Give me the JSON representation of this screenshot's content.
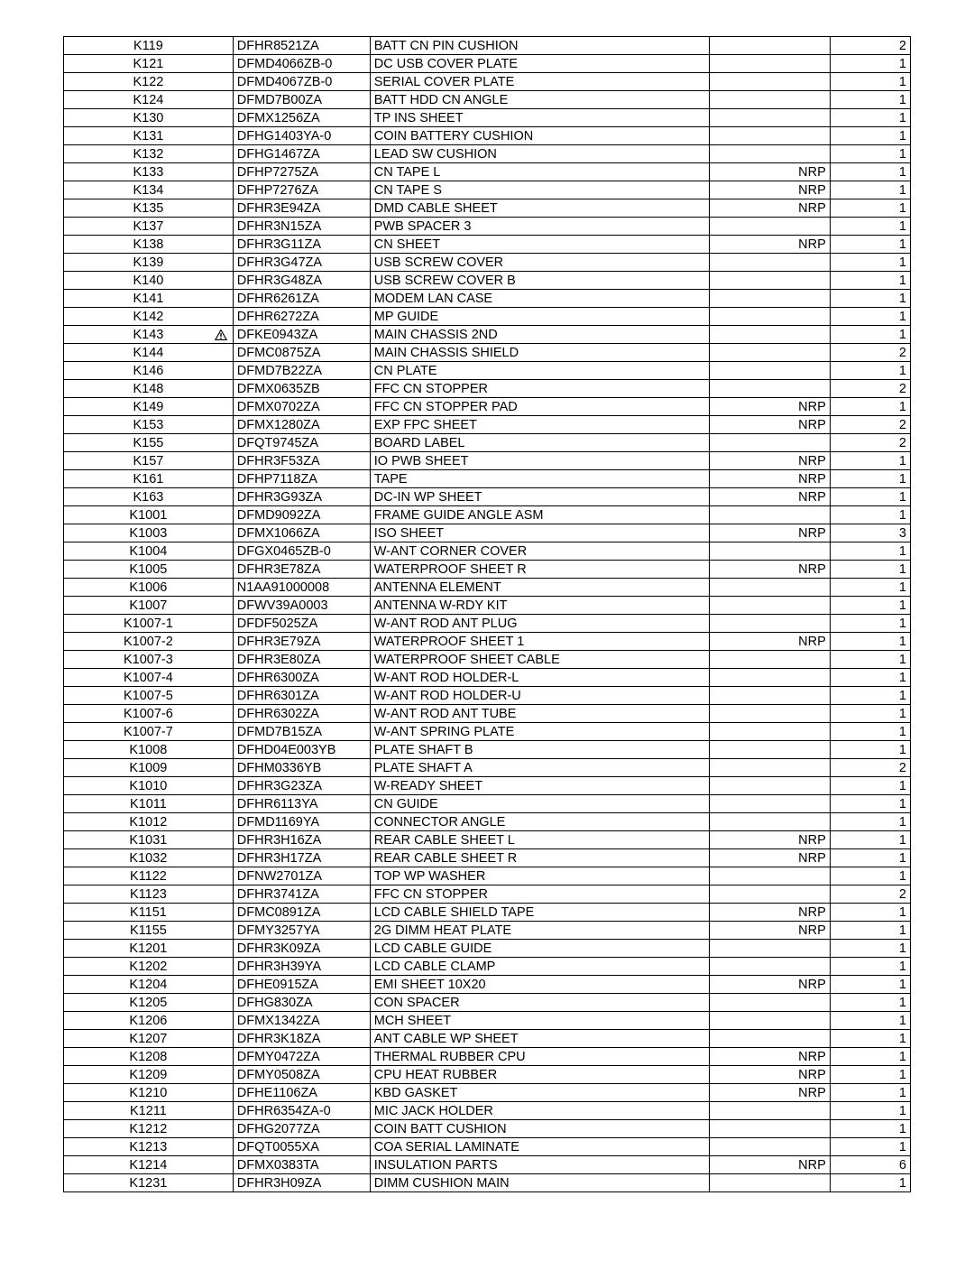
{
  "rows": [
    {
      "ref": "K119",
      "part": "DFHR8521ZA",
      "desc": "BATT CN PIN CUSHION",
      "note": "",
      "qty": "2",
      "warn": false
    },
    {
      "ref": "K121",
      "part": "DFMD4066ZB-0",
      "desc": "DC USB COVER PLATE",
      "note": "",
      "qty": "1",
      "warn": false
    },
    {
      "ref": "K122",
      "part": "DFMD4067ZB-0",
      "desc": "SERIAL COVER PLATE",
      "note": "",
      "qty": "1",
      "warn": false
    },
    {
      "ref": "K124",
      "part": "DFMD7B00ZA",
      "desc": "BATT HDD CN ANGLE",
      "note": "",
      "qty": "1",
      "warn": false
    },
    {
      "ref": "K130",
      "part": "DFMX1256ZA",
      "desc": "TP INS SHEET",
      "note": "",
      "qty": "1",
      "warn": false
    },
    {
      "ref": "K131",
      "part": "DFHG1403YA-0",
      "desc": "COIN BATTERY CUSHION",
      "note": "",
      "qty": "1",
      "warn": false
    },
    {
      "ref": "K132",
      "part": "DFHG1467ZA",
      "desc": "LEAD SW CUSHION",
      "note": "",
      "qty": "1",
      "warn": false
    },
    {
      "ref": "K133",
      "part": "DFHP7275ZA",
      "desc": "CN TAPE L",
      "note": "NRP",
      "qty": "1",
      "warn": false
    },
    {
      "ref": "K134",
      "part": "DFHP7276ZA",
      "desc": "CN TAPE S",
      "note": "NRP",
      "qty": "1",
      "warn": false
    },
    {
      "ref": "K135",
      "part": "DFHR3E94ZA",
      "desc": "DMD CABLE SHEET",
      "note": "NRP",
      "qty": "1",
      "warn": false
    },
    {
      "ref": "K137",
      "part": "DFHR3N15ZA",
      "desc": "PWB SPACER 3",
      "note": "",
      "qty": "1",
      "warn": false
    },
    {
      "ref": "K138",
      "part": "DFHR3G11ZA",
      "desc": "CN SHEET",
      "note": "NRP",
      "qty": "1",
      "warn": false
    },
    {
      "ref": "K139",
      "part": "DFHR3G47ZA",
      "desc": "USB SCREW COVER",
      "note": "",
      "qty": "1",
      "warn": false
    },
    {
      "ref": "K140",
      "part": "DFHR3G48ZA",
      "desc": "USB SCREW COVER B",
      "note": "",
      "qty": "1",
      "warn": false
    },
    {
      "ref": "K141",
      "part": "DFHR6261ZA",
      "desc": "MODEM LAN CASE",
      "note": "",
      "qty": "1",
      "warn": false
    },
    {
      "ref": "K142",
      "part": "DFHR6272ZA",
      "desc": "MP GUIDE",
      "note": "",
      "qty": "1",
      "warn": false
    },
    {
      "ref": "K143",
      "part": "DFKE0943ZA",
      "desc": "MAIN CHASSIS 2ND",
      "note": "",
      "qty": "1",
      "warn": true
    },
    {
      "ref": "K144",
      "part": "DFMC0875ZA",
      "desc": "MAIN CHASSIS SHIELD",
      "note": "",
      "qty": "2",
      "warn": false
    },
    {
      "ref": "K146",
      "part": "DFMD7B22ZA",
      "desc": "CN PLATE",
      "note": "",
      "qty": "1",
      "warn": false
    },
    {
      "ref": "K148",
      "part": "DFMX0635ZB",
      "desc": "FFC CN STOPPER",
      "note": "",
      "qty": "2",
      "warn": false
    },
    {
      "ref": "K149",
      "part": "DFMX0702ZA",
      "desc": "FFC CN STOPPER PAD",
      "note": "NRP",
      "qty": "1",
      "warn": false
    },
    {
      "ref": "K153",
      "part": "DFMX1280ZA",
      "desc": "EXP FPC SHEET",
      "note": "NRP",
      "qty": "2",
      "warn": false
    },
    {
      "ref": "K155",
      "part": "DFQT9745ZA",
      "desc": "BOARD LABEL",
      "note": "",
      "qty": "2",
      "warn": false
    },
    {
      "ref": "K157",
      "part": "DFHR3F53ZA",
      "desc": "IO PWB SHEET",
      "note": "NRP",
      "qty": "1",
      "warn": false
    },
    {
      "ref": "K161",
      "part": "DFHP7118ZA",
      "desc": "TAPE",
      "note": "NRP",
      "qty": "1",
      "warn": false
    },
    {
      "ref": "K163",
      "part": "DFHR3G93ZA",
      "desc": "DC-IN WP SHEET",
      "note": "NRP",
      "qty": "1",
      "warn": false
    },
    {
      "ref": "K1001",
      "part": "DFMD9092ZA",
      "desc": "FRAME GUIDE ANGLE ASM",
      "note": "",
      "qty": "1",
      "warn": false
    },
    {
      "ref": "K1003",
      "part": "DFMX1066ZA",
      "desc": "ISO SHEET",
      "note": "NRP",
      "qty": "3",
      "warn": false
    },
    {
      "ref": "K1004",
      "part": "DFGX0465ZB-0",
      "desc": "W-ANT CORNER COVER",
      "note": "",
      "qty": "1",
      "warn": false
    },
    {
      "ref": "K1005",
      "part": "DFHR3E78ZA",
      "desc": "WATERPROOF SHEET R",
      "note": "NRP",
      "qty": "1",
      "warn": false
    },
    {
      "ref": "K1006",
      "part": "N1AA91000008",
      "desc": "ANTENNA ELEMENT",
      "note": "",
      "qty": "1",
      "warn": false
    },
    {
      "ref": "K1007",
      "part": "DFWV39A0003",
      "desc": "ANTENNA W-RDY KIT",
      "note": "",
      "qty": "1",
      "warn": false
    },
    {
      "ref": "K1007-1",
      "part": "DFDF5025ZA",
      "desc": "W-ANT ROD ANT PLUG",
      "note": "",
      "qty": "1",
      "warn": false
    },
    {
      "ref": "K1007-2",
      "part": "DFHR3E79ZA",
      "desc": "WATERPROOF SHEET 1",
      "note": "NRP",
      "qty": "1",
      "warn": false
    },
    {
      "ref": "K1007-3",
      "part": "DFHR3E80ZA",
      "desc": "WATERPROOF SHEET CABLE",
      "note": "",
      "qty": "1",
      "warn": false
    },
    {
      "ref": "K1007-4",
      "part": "DFHR6300ZA",
      "desc": "W-ANT ROD HOLDER-L",
      "note": "",
      "qty": "1",
      "warn": false
    },
    {
      "ref": "K1007-5",
      "part": "DFHR6301ZA",
      "desc": "W-ANT ROD HOLDER-U",
      "note": "",
      "qty": "1",
      "warn": false
    },
    {
      "ref": "K1007-6",
      "part": "DFHR6302ZA",
      "desc": "W-ANT ROD ANT TUBE",
      "note": "",
      "qty": "1",
      "warn": false
    },
    {
      "ref": "K1007-7",
      "part": "DFMD7B15ZA",
      "desc": "W-ANT SPRING PLATE",
      "note": "",
      "qty": "1",
      "warn": false
    },
    {
      "ref": "K1008",
      "part": "DFHD04E003YB",
      "desc": "PLATE SHAFT B",
      "note": "",
      "qty": "1",
      "warn": false
    },
    {
      "ref": "K1009",
      "part": "DFHM0336YB",
      "desc": "PLATE SHAFT A",
      "note": "",
      "qty": "2",
      "warn": false
    },
    {
      "ref": "K1010",
      "part": "DFHR3G23ZA",
      "desc": "W-READY SHEET",
      "note": "",
      "qty": "1",
      "warn": false
    },
    {
      "ref": "K1011",
      "part": "DFHR6113YA",
      "desc": "CN GUIDE",
      "note": "",
      "qty": "1",
      "warn": false
    },
    {
      "ref": "K1012",
      "part": "DFMD1169YA",
      "desc": "CONNECTOR ANGLE",
      "note": "",
      "qty": "1",
      "warn": false
    },
    {
      "ref": "K1031",
      "part": "DFHR3H16ZA",
      "desc": "REAR CABLE SHEET L",
      "note": "NRP",
      "qty": "1",
      "warn": false
    },
    {
      "ref": "K1032",
      "part": "DFHR3H17ZA",
      "desc": "REAR CABLE SHEET R",
      "note": "NRP",
      "qty": "1",
      "warn": false
    },
    {
      "ref": "K1122",
      "part": "DFNW2701ZA",
      "desc": "TOP WP WASHER",
      "note": "",
      "qty": "1",
      "warn": false
    },
    {
      "ref": "K1123",
      "part": "DFHR3741ZA",
      "desc": "FFC CN STOPPER",
      "note": "",
      "qty": "2",
      "warn": false
    },
    {
      "ref": "K1151",
      "part": "DFMC0891ZA",
      "desc": "LCD CABLE SHIELD TAPE",
      "note": "NRP",
      "qty": "1",
      "warn": false
    },
    {
      "ref": "K1155",
      "part": "DFMY3257YA",
      "desc": "2G DIMM HEAT PLATE",
      "note": "NRP",
      "qty": "1",
      "warn": false
    },
    {
      "ref": "K1201",
      "part": "DFHR3K09ZA",
      "desc": "LCD CABLE GUIDE",
      "note": "",
      "qty": "1",
      "warn": false
    },
    {
      "ref": "K1202",
      "part": "DFHR3H39YA",
      "desc": "LCD CABLE CLAMP",
      "note": "",
      "qty": "1",
      "warn": false
    },
    {
      "ref": "K1204",
      "part": "DFHE0915ZA",
      "desc": "EMI SHEET 10X20",
      "note": "NRP",
      "qty": "1",
      "warn": false
    },
    {
      "ref": "K1205",
      "part": "DFHG830ZA",
      "desc": "CON SPACER",
      "note": "",
      "qty": "1",
      "warn": false
    },
    {
      "ref": "K1206",
      "part": "DFMX1342ZA",
      "desc": "MCH SHEET",
      "note": "",
      "qty": "1",
      "warn": false
    },
    {
      "ref": "K1207",
      "part": "DFHR3K18ZA",
      "desc": "ANT CABLE WP SHEET",
      "note": "",
      "qty": "1",
      "warn": false
    },
    {
      "ref": "K1208",
      "part": "DFMY0472ZA",
      "desc": "THERMAL RUBBER CPU",
      "note": "NRP",
      "qty": "1",
      "warn": false
    },
    {
      "ref": "K1209",
      "part": "DFMY0508ZA",
      "desc": "CPU HEAT RUBBER",
      "note": "NRP",
      "qty": "1",
      "warn": false
    },
    {
      "ref": "K1210",
      "part": "DFHE1106ZA",
      "desc": "KBD GASKET",
      "note": "NRP",
      "qty": "1",
      "warn": false
    },
    {
      "ref": "K1211",
      "part": "DFHR6354ZA-0",
      "desc": "MIC JACK HOLDER",
      "note": "",
      "qty": "1",
      "warn": false
    },
    {
      "ref": "K1212",
      "part": "DFHG2077ZA",
      "desc": "COIN BATT CUSHION",
      "note": "",
      "qty": "1",
      "warn": false
    },
    {
      "ref": "K1213",
      "part": "DFQT0055XA",
      "desc": "COA SERIAL LAMINATE",
      "note": "",
      "qty": "1",
      "warn": false
    },
    {
      "ref": "K1214",
      "part": "DFMX0383TA",
      "desc": "INSULATION PARTS",
      "note": "NRP",
      "qty": "6",
      "warn": false
    },
    {
      "ref": "K1231",
      "part": "DFHR3H09ZA",
      "desc": "DIMM CUSHION MAIN",
      "note": "",
      "qty": "1",
      "warn": false
    }
  ]
}
